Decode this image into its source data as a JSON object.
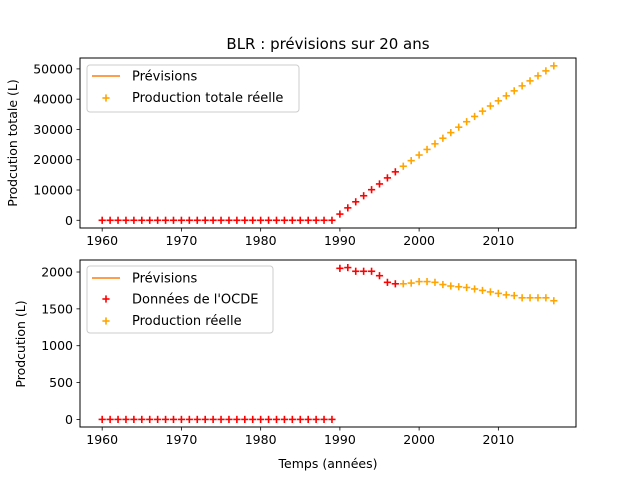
{
  "chart_data": [
    {
      "type": "scatter",
      "title": "BLR : prévisions sur 20 ans",
      "xlabel": "",
      "ylabel": "Prodcution totale (L)",
      "xlim": [
        1957.2,
        2019.8
      ],
      "ylim": [
        -2550,
        53600
      ],
      "xticks": [
        1960,
        1970,
        1980,
        1990,
        2000,
        2010
      ],
      "yticks": [
        0,
        10000,
        20000,
        30000,
        40000,
        50000
      ],
      "legend_position": "upper-left",
      "legend": [
        "Prévisions",
        "Production totale réelle"
      ],
      "series": [
        {
          "name": "Prévisions",
          "kind": "line",
          "color": "#ff7f0e",
          "x": [],
          "y": []
        },
        {
          "name": "",
          "kind": "plus",
          "color": "#ff0000",
          "x": [
            1960,
            1961,
            1962,
            1963,
            1964,
            1965,
            1966,
            1967,
            1968,
            1969,
            1970,
            1971,
            1972,
            1973,
            1974,
            1975,
            1976,
            1977,
            1978,
            1979,
            1980,
            1981,
            1982,
            1983,
            1984,
            1985,
            1986,
            1987,
            1988,
            1989,
            1990,
            1991,
            1992,
            1993,
            1994,
            1995,
            1996,
            1997
          ],
          "y": [
            0,
            0,
            0,
            0,
            0,
            0,
            0,
            0,
            0,
            0,
            0,
            0,
            0,
            0,
            0,
            0,
            0,
            0,
            0,
            0,
            0,
            0,
            0,
            0,
            0,
            0,
            0,
            0,
            0,
            0,
            2050,
            4100,
            6100,
            8100,
            10100,
            12000,
            14000,
            16000
          ]
        },
        {
          "name": "Production totale réelle",
          "kind": "plus",
          "color": "#ffa500",
          "x": [
            1998,
            1999,
            2000,
            2001,
            2002,
            2003,
            2004,
            2005,
            2006,
            2007,
            2008,
            2009,
            2010,
            2011,
            2012,
            2013,
            2014,
            2015,
            2016,
            2017
          ],
          "y": [
            17850,
            19700,
            21550,
            23400,
            25250,
            27100,
            28950,
            30750,
            32550,
            34300,
            36050,
            37750,
            39450,
            41100,
            42750,
            44400,
            46050,
            47700,
            49350,
            51000
          ]
        }
      ]
    },
    {
      "type": "scatter",
      "title": "",
      "xlabel": "Temps (années)",
      "ylabel": "Prodcution (L)",
      "xlim": [
        1957.2,
        2019.8
      ],
      "ylim": [
        -103,
        2163
      ],
      "xticks": [
        1960,
        1970,
        1980,
        1990,
        2000,
        2010
      ],
      "yticks": [
        0,
        500,
        1000,
        1500,
        2000
      ],
      "legend_position": "upper-left",
      "legend": [
        "Prévisions",
        "Données de l'OCDE",
        "Production réelle"
      ],
      "series": [
        {
          "name": "Prévisions",
          "kind": "line",
          "color": "#ff7f0e",
          "x": [],
          "y": []
        },
        {
          "name": "Données de l'OCDE",
          "kind": "plus",
          "color": "#ff0000",
          "x": [
            1960,
            1961,
            1962,
            1963,
            1964,
            1965,
            1966,
            1967,
            1968,
            1969,
            1970,
            1971,
            1972,
            1973,
            1974,
            1975,
            1976,
            1977,
            1978,
            1979,
            1980,
            1981,
            1982,
            1983,
            1984,
            1985,
            1986,
            1987,
            1988,
            1989,
            1990,
            1991,
            1992,
            1993,
            1994,
            1995,
            1996,
            1997
          ],
          "y": [
            0,
            0,
            0,
            0,
            0,
            0,
            0,
            0,
            0,
            0,
            0,
            0,
            0,
            0,
            0,
            0,
            0,
            0,
            0,
            0,
            0,
            0,
            0,
            0,
            0,
            0,
            0,
            0,
            0,
            0,
            2050,
            2060,
            2010,
            2010,
            2010,
            1950,
            1860,
            1840
          ]
        },
        {
          "name": "Production réelle",
          "kind": "plus",
          "color": "#ffa500",
          "x": [
            1998,
            1999,
            2000,
            2001,
            2002,
            2003,
            2004,
            2005,
            2006,
            2007,
            2008,
            2009,
            2010,
            2011,
            2012,
            2013,
            2014,
            2015,
            2016,
            2017
          ],
          "y": [
            1840,
            1850,
            1870,
            1870,
            1860,
            1830,
            1810,
            1800,
            1790,
            1770,
            1750,
            1730,
            1710,
            1690,
            1680,
            1650,
            1650,
            1650,
            1650,
            1610
          ]
        }
      ]
    }
  ]
}
